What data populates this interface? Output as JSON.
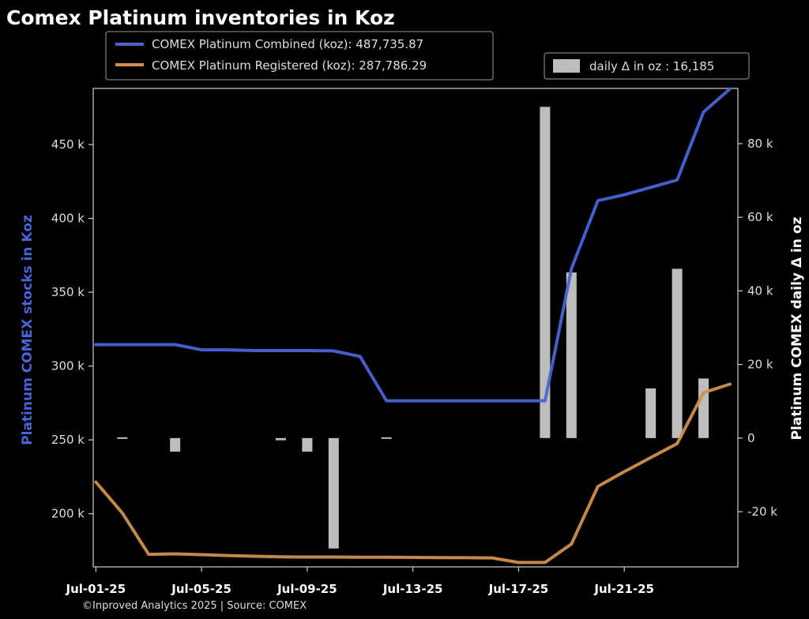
{
  "chart_data": {
    "type": "line",
    "title": "Comex Platinum inventories in Koz",
    "footer": "©Inproved Analytics 2025 | Source: COMEX",
    "ylabel_left": "Platinum COMEX stocks in Koz",
    "ylabel_right": "Platinum COMEX daily Δ in oz",
    "x_ticks": [
      "Jul-01-25",
      "Jul-05-25",
      "Jul-09-25",
      "Jul-13-25",
      "Jul-17-25",
      "Jul-21-25"
    ],
    "x_tick_days": [
      1,
      5,
      9,
      13,
      17,
      21
    ],
    "xlim": [
      -0.1,
      24.3
    ],
    "left_axis": {
      "ylim": [
        164000,
        488000
      ],
      "ticks": [
        200000,
        250000,
        300000,
        350000,
        400000,
        450000
      ],
      "tick_labels": [
        "200 k",
        "250 k",
        "300 k",
        "350 k",
        "400 k",
        "450 k"
      ]
    },
    "right_axis": {
      "ylim": [
        -35000,
        95000
      ],
      "ticks": [
        -20000,
        0,
        20000,
        40000,
        60000,
        80000
      ],
      "tick_labels": [
        "-20 k",
        "0",
        "20 k",
        "40 k",
        "60 k",
        "80 k"
      ]
    },
    "colors": {
      "combined": "#4a63d6",
      "registered": "#d08f4f",
      "bars": "#bdbdbd",
      "left_label": "#4a63d6"
    },
    "series": [
      {
        "name": "COMEX Platinum Combined (koz): 487,735.87",
        "axis": "left",
        "color": "#4a63d6",
        "x": [
          0,
          1,
          2,
          3,
          4,
          5,
          6,
          7,
          8,
          9,
          10,
          11,
          12,
          13,
          14,
          15,
          16,
          17,
          18,
          19,
          20,
          21,
          22,
          23,
          24
        ],
        "y": [
          314500,
          314500,
          314500,
          314500,
          311000,
          311000,
          310500,
          310500,
          310500,
          310300,
          306500,
          276500,
          276500,
          276500,
          276500,
          276500,
          276500,
          276500,
          366000,
          412000,
          416000,
          421000,
          426000,
          472000,
          487736
        ]
      },
      {
        "name": "COMEX Platinum Registered (koz): 287,786.29",
        "axis": "left",
        "color": "#d08f4f",
        "x": [
          0,
          1,
          2,
          3,
          4,
          5,
          6,
          7,
          8,
          9,
          10,
          11,
          12,
          13,
          14,
          15,
          16,
          17,
          18,
          19,
          20,
          21,
          22,
          23,
          24
        ],
        "y": [
          221500,
          200500,
          172500,
          172800,
          172300,
          171700,
          171200,
          170800,
          170700,
          170700,
          170600,
          170500,
          170400,
          170300,
          170200,
          170100,
          167000,
          167000,
          179500,
          218500,
          228500,
          238000,
          247500,
          282000,
          287786
        ]
      },
      {
        "name": "daily Δ in oz : 16,185",
        "type": "bar",
        "axis": "right",
        "color": "#bdbdbd",
        "x": [
          1,
          3,
          7,
          8,
          9,
          11,
          17,
          18,
          21,
          22,
          23
        ],
        "y": [
          -400,
          -3700,
          -600,
          -3700,
          -30000,
          -300,
          90000,
          45000,
          13500,
          46000,
          16185
        ]
      }
    ],
    "legend": {
      "placement": "top-left",
      "entries": [
        "COMEX Platinum Combined (koz): 487,735.87",
        "COMEX Platinum Registered (koz): 287,786.29"
      ]
    },
    "legend_right": {
      "placement": "top-right",
      "entries": [
        "daily Δ in oz : 16,185"
      ]
    },
    "grid": false
  }
}
